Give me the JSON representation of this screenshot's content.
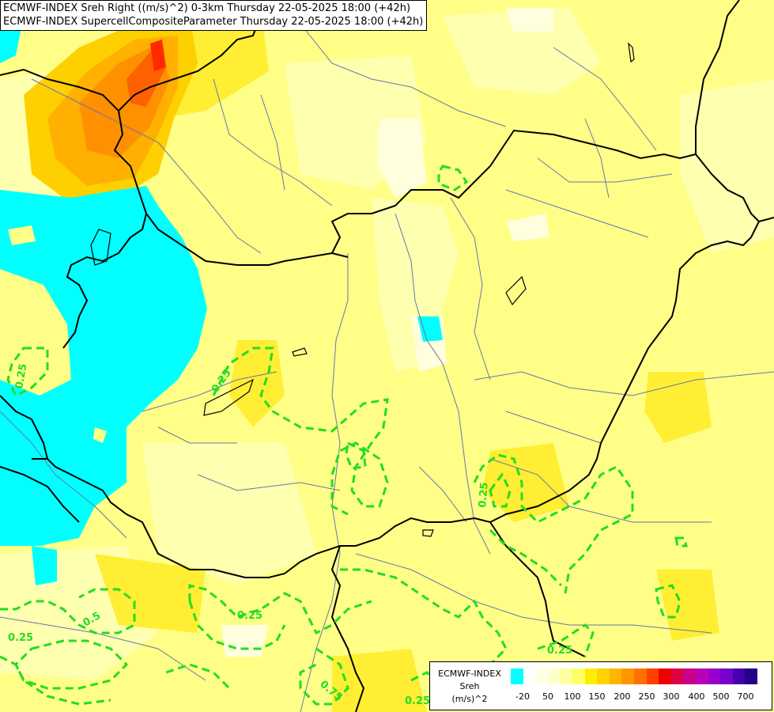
{
  "title": {
    "line1": "ECMWF-INDEX Sreh Right ((m/s)^2) 0-3km Thursday 22-05-2025 18:00 (+42h)",
    "line2": "ECMWF-INDEX SupercellCompositeParameter Thursday 22-05-2025 18:00 (+42h)"
  },
  "contour_labels": [
    "0.25",
    "0.25",
    "0.25",
    "0.25",
    "0.5",
    "0.25",
    "0.75",
    "0.25",
    "0.25"
  ],
  "colors": {
    "background": "#ffff99",
    "negative_area": "#00ffff",
    "contour": "#22dd22",
    "borders": "#000000",
    "rivers": "#6677aa"
  },
  "legend": {
    "line1": "ECMWF-INDEX",
    "line2": "Sreh",
    "line3": "(m/s)^2",
    "swatches": [
      "#00ffff",
      "#ffffff",
      "#ffffe6",
      "#ffffcc",
      "#ffffa0",
      "#ffff66",
      "#ffee00",
      "#ffd200",
      "#ffb400",
      "#ff9600",
      "#ff7000",
      "#ff4000",
      "#ee0000",
      "#dd0044",
      "#cc0088",
      "#bb00bb",
      "#9900cc",
      "#7700cc",
      "#4400aa",
      "#220088"
    ],
    "ticks": [
      "-20",
      "50",
      "100",
      "150",
      "200",
      "250",
      "300",
      "400",
      "500",
      "700"
    ]
  }
}
